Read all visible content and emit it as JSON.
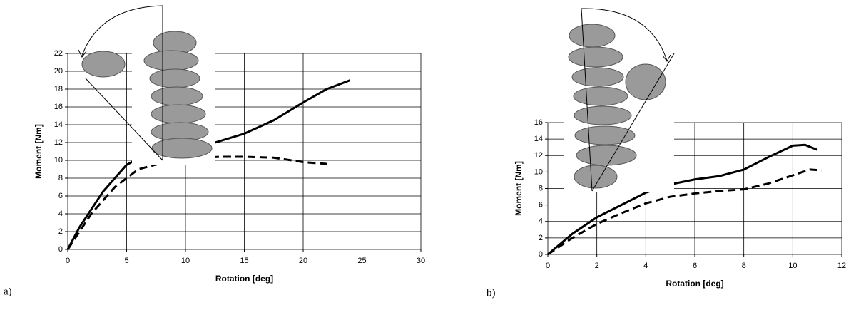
{
  "chart_data": [
    {
      "type": "line",
      "label": "a)",
      "xlabel": "Rotation [deg]",
      "ylabel": "Moment [Nm]",
      "xlim": [
        0,
        30
      ],
      "xticks": [
        0,
        5,
        10,
        15,
        20,
        25,
        30
      ],
      "ylim": [
        0,
        22
      ],
      "yticks": [
        0,
        2,
        4,
        6,
        8,
        10,
        12,
        14,
        16,
        18,
        20,
        22
      ],
      "grid": true,
      "series": [
        {
          "color": "#000000",
          "line_style": "solid",
          "x": [
            0,
            1,
            2,
            3,
            4,
            5,
            6,
            8,
            10,
            12.5,
            15,
            17.5,
            20,
            22,
            24
          ],
          "values": [
            0,
            2.5,
            4.5,
            6.5,
            8,
            9.5,
            10.2,
            11,
            11.5,
            12,
            13,
            14.5,
            16.5,
            18,
            19
          ]
        },
        {
          "color": "#000000",
          "line_style": "dashed",
          "x": [
            0,
            1,
            2,
            3,
            4,
            5,
            6,
            8,
            10,
            13,
            15,
            17.5,
            20,
            22
          ],
          "values": [
            0,
            2,
            4,
            5.5,
            7,
            8,
            9,
            9.7,
            10.2,
            10.4,
            10.4,
            10.3,
            9.8,
            9.6
          ]
        }
      ]
    },
    {
      "type": "line",
      "label": "b)",
      "xlabel": "Rotation [deg]",
      "ylabel": "Moment [Nm]",
      "xlim": [
        0,
        12
      ],
      "xticks": [
        0,
        2,
        4,
        6,
        8,
        10,
        12
      ],
      "ylim": [
        0,
        16
      ],
      "yticks": [
        0,
        2,
        4,
        6,
        8,
        10,
        12,
        14,
        16
      ],
      "grid": true,
      "series": [
        {
          "color": "#000000",
          "line_style": "solid",
          "x": [
            0,
            1,
            2,
            3,
            4,
            5,
            6,
            7,
            8,
            9,
            10,
            10.5,
            11
          ],
          "values": [
            0,
            2.5,
            4.5,
            6,
            7.5,
            8.5,
            9.1,
            9.5,
            10.3,
            11.8,
            13.2,
            13.3,
            12.7
          ]
        },
        {
          "color": "#000000",
          "line_style": "dashed",
          "x": [
            0,
            1,
            2,
            3,
            4,
            5,
            6,
            7,
            8,
            9,
            10,
            10.7,
            11.2
          ],
          "values": [
            0,
            2,
            3.7,
            5,
            6.2,
            7,
            7.4,
            7.7,
            7.9,
            8.6,
            9.6,
            10.3,
            10.2
          ]
        }
      ]
    }
  ]
}
